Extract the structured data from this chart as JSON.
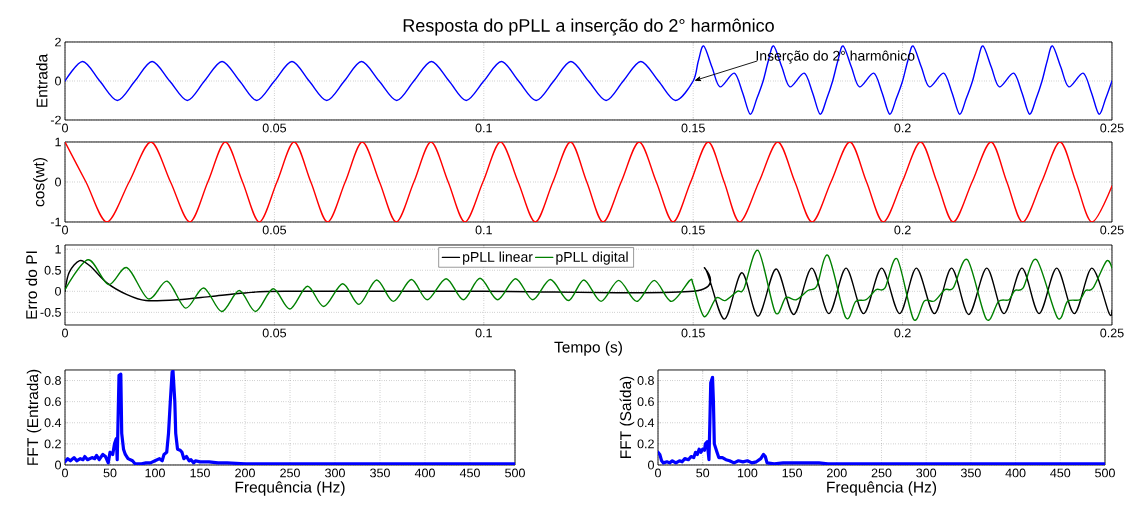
{
  "chart_data": [
    {
      "type": "line",
      "title": "Resposta do pPLL a inserção do 2° harmônico",
      "ylabel": "Entrada",
      "xlim": [
        0,
        0.25
      ],
      "ylim": [
        -2,
        2
      ],
      "xticks": [
        0,
        0.05,
        0.1,
        0.15,
        0.2,
        0.25
      ],
      "yticks": [
        -2,
        0,
        2
      ],
      "grid": true,
      "annotations": [
        {
          "text": "Inserção do 2° harmônico",
          "x": 0.15,
          "y": 0
        }
      ],
      "series": [
        {
          "color": "#0000ff",
          "x": [
            0,
            0.0042,
            0.0083,
            0.0125,
            0.0167,
            0.0208,
            0.025,
            0.0292,
            0.0333,
            0.0375,
            0.0417,
            0.0458,
            0.05,
            0.0542,
            0.0583,
            0.0625,
            0.0667,
            0.0708,
            0.075,
            0.0792,
            0.0833,
            0.0875,
            0.0917,
            0.0958,
            0.1,
            0.1042,
            0.1083,
            0.1125,
            0.1167,
            0.1208,
            0.125,
            0.1292,
            0.1333,
            0.1375,
            0.1417,
            0.1458,
            0.15,
            0.1512,
            0.1525,
            0.1545,
            0.1564,
            0.1598,
            0.1618,
            0.1636,
            0.1652,
            0.1667,
            0.1679,
            0.1692,
            0.1712,
            0.1731,
            0.1765,
            0.1785,
            0.1803,
            0.1819,
            0.1833,
            0.1845,
            0.1858,
            0.1878,
            0.1897,
            0.1931,
            0.1951,
            0.1969,
            0.1985,
            0.2,
            0.2012,
            0.2025,
            0.2045,
            0.2064,
            0.2098,
            0.2118,
            0.2136,
            0.2152,
            0.2167,
            0.2179,
            0.2192,
            0.2212,
            0.2231,
            0.2265,
            0.2285,
            0.2303,
            0.2319,
            0.2333,
            0.2345,
            0.2358,
            0.2378,
            0.2397,
            0.2431,
            0.2451,
            0.2469,
            0.2485,
            0.25
          ],
          "values": [
            0,
            1,
            0,
            -1,
            0,
            1,
            0,
            -1,
            0,
            1,
            0,
            -1,
            0,
            1,
            0,
            -1,
            0,
            1,
            0,
            -1,
            0,
            1,
            0,
            -1,
            0,
            1,
            0,
            -1,
            0,
            1,
            0,
            -1,
            0,
            1,
            0,
            -1,
            0,
            1.0,
            1.8,
            0.7,
            -0.3,
            0.4,
            -0.6,
            -1.7,
            -0.9,
            0,
            1.0,
            1.8,
            0.7,
            -0.3,
            0.4,
            -0.6,
            -1.7,
            -0.9,
            0,
            1.0,
            1.8,
            0.7,
            -0.3,
            0.4,
            -0.6,
            -1.7,
            -0.9,
            0,
            1.0,
            1.8,
            0.7,
            -0.3,
            0.4,
            -0.6,
            -1.7,
            -0.9,
            0,
            1.0,
            1.8,
            0.7,
            -0.3,
            0.4,
            -0.6,
            -1.7,
            -0.9,
            0,
            1.0,
            1.8,
            0.7,
            -0.3,
            0.4,
            -0.6,
            -1.7,
            -0.9,
            0
          ]
        }
      ]
    },
    {
      "type": "line",
      "ylabel": "cos(wt)",
      "xlim": [
        0,
        0.25
      ],
      "ylim": [
        -1,
        1
      ],
      "xticks": [
        0,
        0.05,
        0.1,
        0.15,
        0.2,
        0.25
      ],
      "yticks": [
        -1,
        0,
        1
      ],
      "grid": true,
      "series": [
        {
          "color": "#ff0000",
          "x": [
            0,
            0.005,
            0.01,
            0.0153,
            0.0205,
            0.0252,
            0.0298,
            0.0341,
            0.0383,
            0.0424,
            0.0464,
            0.0506,
            0.0547,
            0.0587,
            0.0627,
            0.0669,
            0.071,
            0.0751,
            0.0791,
            0.0833,
            0.0874,
            0.0915,
            0.0955,
            0.0998,
            0.104,
            0.1082,
            0.1123,
            0.1165,
            0.1207,
            0.1246,
            0.1285,
            0.1328,
            0.1371,
            0.1412,
            0.1452,
            0.1494,
            0.1536,
            0.1574,
            0.1611,
            0.1657,
            0.1702,
            0.1743,
            0.1784,
            0.1829,
            0.1874,
            0.1914,
            0.1954,
            0.1999,
            0.2043,
            0.2082,
            0.2121,
            0.2166,
            0.2211,
            0.2249,
            0.2287,
            0.2332,
            0.2376,
            0.2414,
            0.2452,
            0.25
          ],
          "values": [
            1,
            0,
            -1,
            0,
            1,
            0,
            -1,
            0,
            1,
            0,
            -1,
            0,
            1,
            0,
            -1,
            0,
            1,
            0,
            -1,
            0,
            1,
            0,
            -1,
            0,
            1,
            0,
            -1,
            0,
            1,
            0,
            -1,
            0,
            1,
            0,
            -1,
            0,
            1,
            0,
            -1,
            0,
            1,
            0,
            -1,
            0,
            1,
            0,
            -1,
            0,
            1,
            0,
            -1,
            0,
            1,
            0,
            -1,
            0,
            1,
            0,
            -1,
            -0.1
          ]
        }
      ]
    },
    {
      "type": "line",
      "ylabel": "Erro do PI",
      "xlabel": "Tempo (s)",
      "xlim": [
        0,
        0.25
      ],
      "ylim": [
        -0.8,
        1.1
      ],
      "xticks": [
        0,
        0.05,
        0.1,
        0.15,
        0.2,
        0.25
      ],
      "yticks": [
        -0.5,
        0,
        0.5,
        1
      ],
      "grid": true,
      "legend": "top",
      "series": [
        {
          "name": "pPLL linear",
          "color": "#000000",
          "x": [
            0,
            0.001,
            0.0035,
            0.006,
            0.01,
            0.0148,
            0.0193,
            0.027,
            0.035,
            0.043,
            0.0527,
            0.1,
            0.15,
            0.1528,
            0.1574,
            0.1616,
            0.1655,
            0.1698,
            0.174,
            0.1783,
            0.1824,
            0.1865,
            0.1907,
            0.195,
            0.1993,
            0.2033,
            0.2076,
            0.2117,
            0.2158,
            0.2201,
            0.2242,
            0.2285,
            0.2326,
            0.2368,
            0.241,
            0.2452,
            0.2493,
            0.25
          ],
          "values": [
            0,
            0.45,
            0.73,
            0.6,
            0.2,
            -0.08,
            -0.22,
            -0.2,
            -0.12,
            -0.04,
            0,
            0,
            0,
            0.55,
            -0.66,
            0.44,
            -0.59,
            0.53,
            -0.55,
            0.55,
            -0.53,
            0.55,
            -0.53,
            0.55,
            -0.53,
            0.55,
            -0.53,
            0.55,
            -0.55,
            0.55,
            -0.53,
            0.55,
            -0.53,
            0.55,
            -0.53,
            0.55,
            -0.52,
            -0.45
          ]
        },
        {
          "name": "pPLL digital",
          "color": "#008000",
          "x": [
            0,
            0.0055,
            0.0104,
            0.0148,
            0.0199,
            0.0244,
            0.0288,
            0.0331,
            0.0374,
            0.0416,
            0.0455,
            0.0497,
            0.0537,
            0.0579,
            0.0618,
            0.0663,
            0.0702,
            0.0744,
            0.0784,
            0.0827,
            0.0865,
            0.091,
            0.0951,
            0.0991,
            0.1033,
            0.1076,
            0.1117,
            0.1159,
            0.1202,
            0.1239,
            0.128,
            0.1322,
            0.1365,
            0.1407,
            0.1448,
            0.1492,
            0.15,
            0.1526,
            0.1555,
            0.1576,
            0.1605,
            0.1621,
            0.1655,
            0.1696,
            0.1721,
            0.1746,
            0.1774,
            0.1795,
            0.1822,
            0.1864,
            0.1888,
            0.1913,
            0.1937,
            0.1958,
            0.1987,
            0.2026,
            0.2052,
            0.2076,
            0.2101,
            0.2121,
            0.2155,
            0.22,
            0.2229,
            0.2254,
            0.2268,
            0.2288,
            0.232,
            0.237,
            0.2394,
            0.2423,
            0.2437,
            0.2455,
            0.2487,
            0.25
          ],
          "values": [
            0.04,
            0.75,
            0.16,
            0.56,
            -0.18,
            0.24,
            -0.4,
            0.08,
            -0.48,
            0.02,
            -0.48,
            0.06,
            -0.42,
            0.12,
            -0.36,
            0.18,
            -0.31,
            0.27,
            -0.24,
            0.28,
            -0.2,
            0.3,
            -0.2,
            0.31,
            -0.2,
            0.3,
            -0.2,
            0.28,
            -0.22,
            0.27,
            -0.24,
            0.26,
            -0.24,
            0.26,
            -0.24,
            0.26,
            0.16,
            -0.6,
            -0.16,
            -0.22,
            0,
            0.06,
            0.97,
            -0.5,
            -0.15,
            -0.2,
            0.02,
            0.12,
            0.85,
            -0.62,
            -0.24,
            -0.2,
            0.04,
            0.08,
            0.77,
            -0.66,
            -0.23,
            -0.23,
            0.04,
            0.08,
            0.75,
            -0.66,
            -0.24,
            -0.2,
            0.02,
            0.08,
            0.75,
            -0.63,
            -0.24,
            -0.2,
            0.02,
            0.08,
            0.72,
            0.55
          ]
        }
      ]
    },
    {
      "type": "line",
      "ylabel": "FFT (Entrada)",
      "xlabel": "Frequência (Hz)",
      "xlim": [
        0,
        500
      ],
      "ylim": [
        0,
        0.9
      ],
      "xticks": [
        0,
        50,
        100,
        150,
        200,
        250,
        300,
        350,
        400,
        450,
        500
      ],
      "yticks": [
        0,
        0.2,
        0.4,
        0.6,
        0.8
      ],
      "grid": true,
      "series": [
        {
          "color": "#0000ff",
          "x": [
            0,
            3,
            6,
            10,
            13,
            17,
            20,
            22,
            25,
            30,
            33,
            35,
            38,
            42,
            45,
            48,
            50,
            53,
            55,
            57,
            58,
            60,
            62,
            63,
            65,
            67,
            70,
            75,
            78,
            85,
            90,
            95,
            100,
            105,
            108,
            110,
            113,
            115,
            117,
            119,
            120,
            122,
            123,
            125,
            128,
            130,
            132,
            135,
            138,
            140,
            143,
            145,
            150,
            160,
            170,
            180,
            200,
            230,
            500
          ],
          "values": [
            0.03,
            0.06,
            0.04,
            0.07,
            0.04,
            0.06,
            0.05,
            0.08,
            0.05,
            0.07,
            0.06,
            0.09,
            0.05,
            0.1,
            0.08,
            0.02,
            0.12,
            0.1,
            0.2,
            0.25,
            0.05,
            0.85,
            0.86,
            0.3,
            0.15,
            0.1,
            0.06,
            0.04,
            0.01,
            0.01,
            0.02,
            0.02,
            0.04,
            0.06,
            0.04,
            0.1,
            0.12,
            0.3,
            0.6,
            0.88,
            0.89,
            0.6,
            0.3,
            0.15,
            0.14,
            0.12,
            0.06,
            0.08,
            0.04,
            0.05,
            0.02,
            0.04,
            0.03,
            0.03,
            0.02,
            0.02,
            0.01,
            0.01,
            0.01
          ]
        }
      ]
    },
    {
      "type": "line",
      "ylabel": "FFT (Saída)",
      "xlabel": "Frequência (Hz)",
      "xlim": [
        0,
        500
      ],
      "ylim": [
        0,
        0.9
      ],
      "xticks": [
        0,
        50,
        100,
        150,
        200,
        250,
        300,
        350,
        400,
        450,
        500
      ],
      "yticks": [
        0,
        0.2,
        0.4,
        0.6,
        0.8
      ],
      "grid": true,
      "series": [
        {
          "color": "#0000ff",
          "x": [
            0,
            2,
            4,
            6,
            10,
            13,
            16,
            20,
            24,
            27,
            30,
            34,
            37,
            40,
            42,
            44,
            46,
            48,
            50,
            52,
            53,
            55,
            57,
            58,
            59,
            61,
            62,
            63,
            66,
            68,
            72,
            76,
            80,
            85,
            90,
            95,
            100,
            105,
            110,
            115,
            118,
            120,
            122,
            130,
            140,
            150,
            160,
            170,
            180,
            190,
            500
          ],
          "values": [
            0.12,
            0.1,
            0.04,
            0.02,
            0.03,
            0.02,
            0.04,
            0.02,
            0.04,
            0.03,
            0.06,
            0.05,
            0.08,
            0.07,
            0.12,
            0.1,
            0.15,
            0.12,
            0.15,
            0.14,
            0.2,
            0.22,
            0.05,
            0.4,
            0.78,
            0.83,
            0.6,
            0.2,
            0.12,
            0.07,
            0.07,
            0.05,
            0.04,
            0.02,
            0.04,
            0.03,
            0.04,
            0.02,
            0.03,
            0.06,
            0.1,
            0.08,
            0.02,
            0.01,
            0.02,
            0.02,
            0.02,
            0.02,
            0.02,
            0.01,
            0.01
          ]
        }
      ]
    }
  ]
}
